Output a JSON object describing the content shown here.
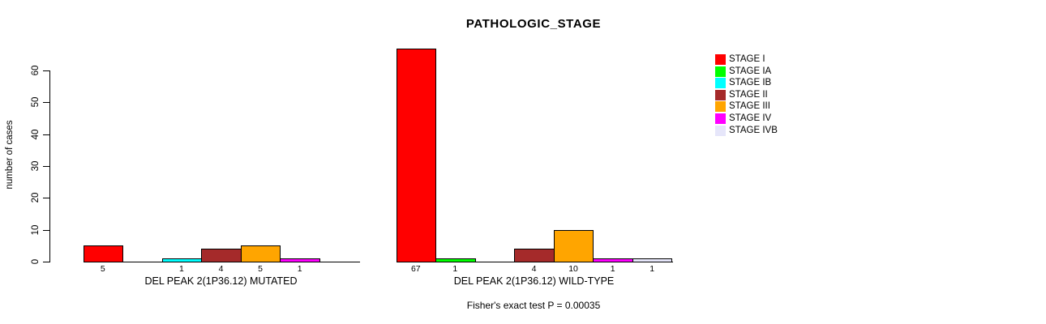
{
  "chart_data": {
    "type": "bar",
    "title": "PATHOLOGIC_STAGE",
    "ylabel": "number of cases",
    "ylim": [
      0,
      67
    ],
    "yticks": [
      0,
      10,
      20,
      30,
      40,
      50,
      60
    ],
    "grid": false,
    "legend_position": "right",
    "annotation": "Fisher's exact test P = 0.00035",
    "stages": [
      {
        "label": "STAGE I",
        "color": "#FF0000"
      },
      {
        "label": "STAGE IA",
        "color": "#00FF00"
      },
      {
        "label": "STAGE IB",
        "color": "#00FFFF"
      },
      {
        "label": "STAGE II",
        "color": "#A52A2A"
      },
      {
        "label": "STAGE III",
        "color": "#FFA500"
      },
      {
        "label": "STAGE IV",
        "color": "#FF00FF"
      },
      {
        "label": "STAGE IVB",
        "color": "#E6E6FA"
      }
    ],
    "groups": [
      {
        "label": "DEL PEAK 2(1P36.12) MUTATED",
        "values": [
          5,
          0,
          1,
          4,
          5,
          1,
          0
        ]
      },
      {
        "label": "DEL PEAK 2(1P36.12) WILD-TYPE",
        "values": [
          67,
          1,
          0,
          4,
          10,
          1,
          1
        ]
      }
    ]
  }
}
